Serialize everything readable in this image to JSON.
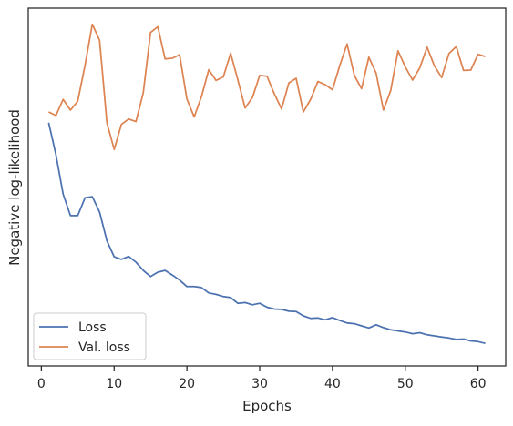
{
  "chart_data": {
    "type": "line",
    "xlabel": "Epochs",
    "ylabel": "Negative log-likelihood",
    "xlim": [
      -1.8,
      63.8
    ],
    "ylim": [
      0,
      1
    ],
    "yaxis_ticks_visible": false,
    "grid": false,
    "legend": "lower-left",
    "x_ticks": [
      0,
      10,
      20,
      30,
      40,
      50,
      60
    ],
    "x_tick_labels": [
      "0",
      "10",
      "20",
      "30",
      "40",
      "50",
      "60"
    ],
    "x": [
      1,
      2,
      3,
      4,
      5,
      6,
      7,
      8,
      9,
      10,
      11,
      12,
      13,
      14,
      15,
      16,
      17,
      18,
      19,
      20,
      21,
      22,
      23,
      24,
      25,
      26,
      27,
      28,
      29,
      30,
      31,
      32,
      33,
      34,
      35,
      36,
      37,
      38,
      39,
      40,
      41,
      42,
      43,
      44,
      45,
      46,
      47,
      48,
      49,
      50,
      51,
      52,
      53,
      54,
      55,
      56,
      57,
      58,
      59,
      60,
      61
    ],
    "series": [
      {
        "name": "Loss",
        "color": "#4c72b0",
        "values": [
          0.68,
          0.59,
          0.48,
          0.42,
          0.42,
          0.47,
          0.473,
          0.43,
          0.35,
          0.305,
          0.298,
          0.306,
          0.29,
          0.267,
          0.25,
          0.262,
          0.267,
          0.254,
          0.24,
          0.222,
          0.222,
          0.219,
          0.204,
          0.2,
          0.194,
          0.191,
          0.175,
          0.177,
          0.171,
          0.175,
          0.164,
          0.159,
          0.158,
          0.153,
          0.152,
          0.14,
          0.133,
          0.134,
          0.129,
          0.135,
          0.127,
          0.12,
          0.118,
          0.112,
          0.106,
          0.115,
          0.107,
          0.101,
          0.098,
          0.095,
          0.09,
          0.093,
          0.087,
          0.084,
          0.081,
          0.078,
          0.074,
          0.075,
          0.07,
          0.068,
          0.063
        ]
      },
      {
        "name": "Val. loss",
        "color": "#dd8452",
        "values": [
          0.71,
          0.7,
          0.745,
          0.715,
          0.74,
          0.84,
          0.955,
          0.91,
          0.68,
          0.605,
          0.675,
          0.69,
          0.683,
          0.763,
          0.932,
          0.948,
          0.858,
          0.86,
          0.87,
          0.746,
          0.696,
          0.753,
          0.828,
          0.798,
          0.808,
          0.874,
          0.8,
          0.721,
          0.75,
          0.812,
          0.81,
          0.761,
          0.718,
          0.791,
          0.804,
          0.71,
          0.745,
          0.795,
          0.786,
          0.772,
          0.84,
          0.9,
          0.812,
          0.775,
          0.863,
          0.818,
          0.715,
          0.77,
          0.881,
          0.836,
          0.799,
          0.833,
          0.891,
          0.839,
          0.806,
          0.873,
          0.893,
          0.826,
          0.827,
          0.871,
          0.865
        ]
      }
    ]
  }
}
